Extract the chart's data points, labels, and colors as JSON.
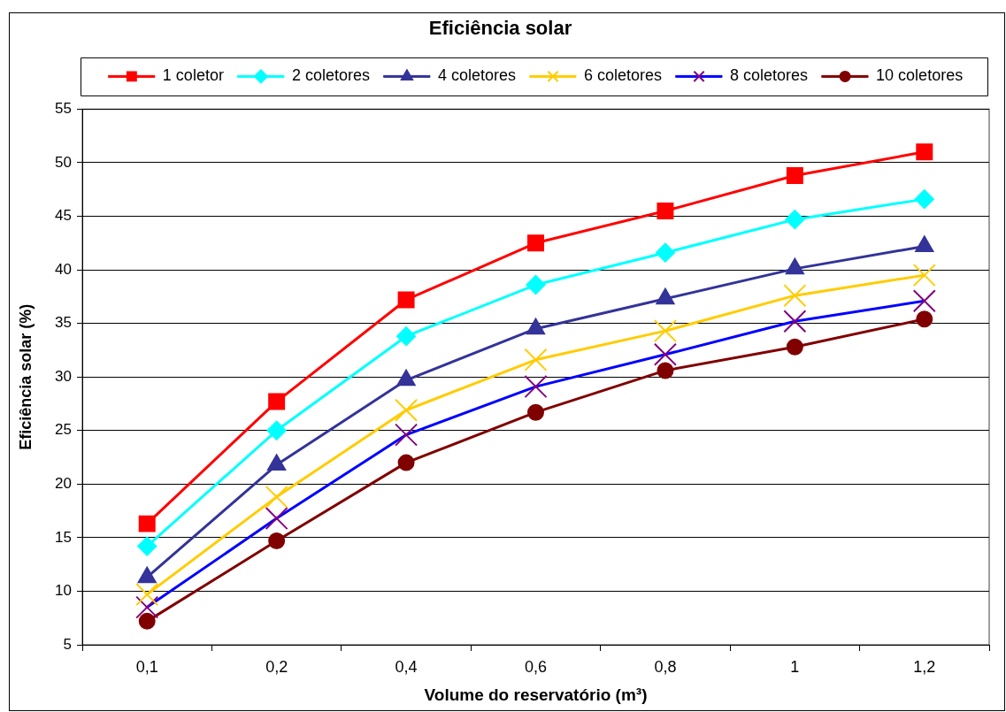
{
  "chart_data": {
    "type": "line",
    "title": "Eficiência solar",
    "xlabel": "Volume do reservatório (m³)",
    "ylabel": "Eficiência solar (%)",
    "categories": [
      "0,1",
      "0,2",
      "0,4",
      "0,6",
      "0,8",
      "1",
      "1,2"
    ],
    "series": [
      {
        "name": "1 coletor",
        "color": "#ff0000",
        "marker": "square",
        "values": [
          16.3,
          27.7,
          37.2,
          42.5,
          45.5,
          48.8,
          51.0
        ]
      },
      {
        "name": "2 coletores",
        "color": "#00ffff",
        "marker": "diamond",
        "values": [
          14.2,
          25.0,
          33.8,
          38.6,
          41.6,
          44.7,
          46.6
        ]
      },
      {
        "name": "4 coletores",
        "color": "#333399",
        "marker": "triangle",
        "values": [
          11.3,
          21.8,
          29.7,
          34.5,
          37.3,
          40.1,
          42.2
        ]
      },
      {
        "name": "6 coletores",
        "color": "#ffcc00",
        "marker": "cross",
        "values": [
          9.7,
          18.8,
          26.9,
          31.6,
          34.3,
          37.6,
          39.5
        ]
      },
      {
        "name": "8 coletores",
        "color": "#0000ff",
        "marker": "cross",
        "colors": [
          "#800080",
          "#800080",
          "#800080",
          "#800080",
          "#800080",
          "#800080",
          "#800080"
        ],
        "values": [
          8.5,
          16.8,
          24.6,
          29.1,
          32.1,
          35.2,
          37.1
        ]
      },
      {
        "name": "10 coletores",
        "color": "#800000",
        "marker": "circle",
        "values": [
          7.2,
          14.7,
          22.0,
          26.7,
          30.6,
          32.8,
          35.4
        ]
      }
    ],
    "ylim": [
      5,
      55
    ],
    "yticks": [
      5,
      10,
      15,
      20,
      25,
      30,
      35,
      40,
      45,
      50,
      55
    ],
    "grid": "y",
    "legend": "top"
  }
}
